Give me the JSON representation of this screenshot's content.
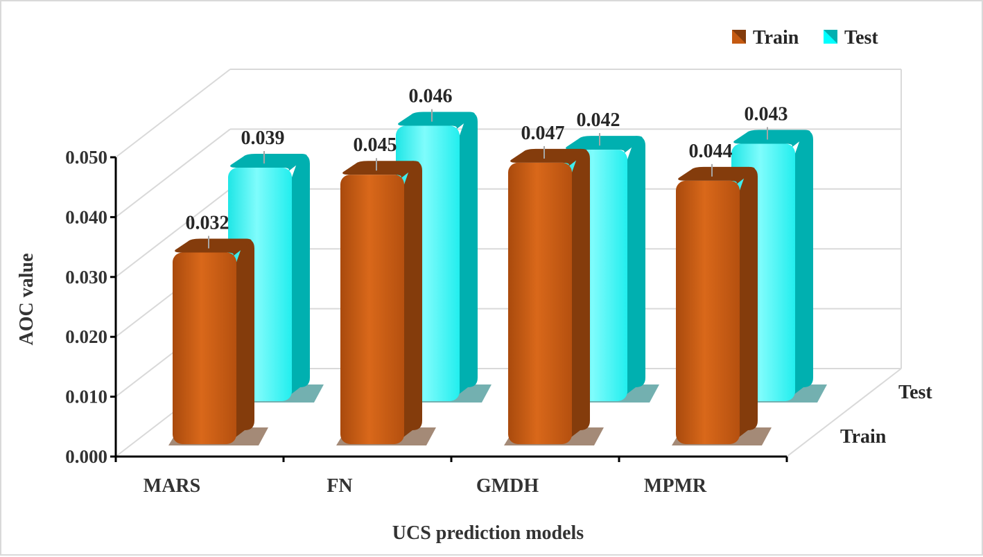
{
  "chart_data": {
    "type": "bar",
    "title": "",
    "xlabel": "UCS prediction models",
    "ylabel": "AOC value",
    "categories": [
      "MARS",
      "FN",
      "GMDH",
      "MPMR"
    ],
    "series": [
      {
        "name": "Train",
        "values": [
          0.032,
          0.045,
          0.047,
          0.044
        ]
      },
      {
        "name": "Test",
        "values": [
          0.039,
          0.046,
          0.042,
          0.043
        ]
      }
    ],
    "ylim": [
      0,
      0.05
    ],
    "yticks": [
      "0.000",
      "0.010",
      "0.020",
      "0.030",
      "0.040",
      "0.050"
    ],
    "depth_labels": [
      "Test",
      "Train"
    ],
    "legend_position": "top-right",
    "grid": true
  },
  "colors": {
    "train_front": "#c55a11",
    "train_side": "#843c0c",
    "test_front": "#00ffff",
    "test_side": "#00b0b0",
    "grid": "#d9d9d9",
    "axis": "#000000"
  }
}
